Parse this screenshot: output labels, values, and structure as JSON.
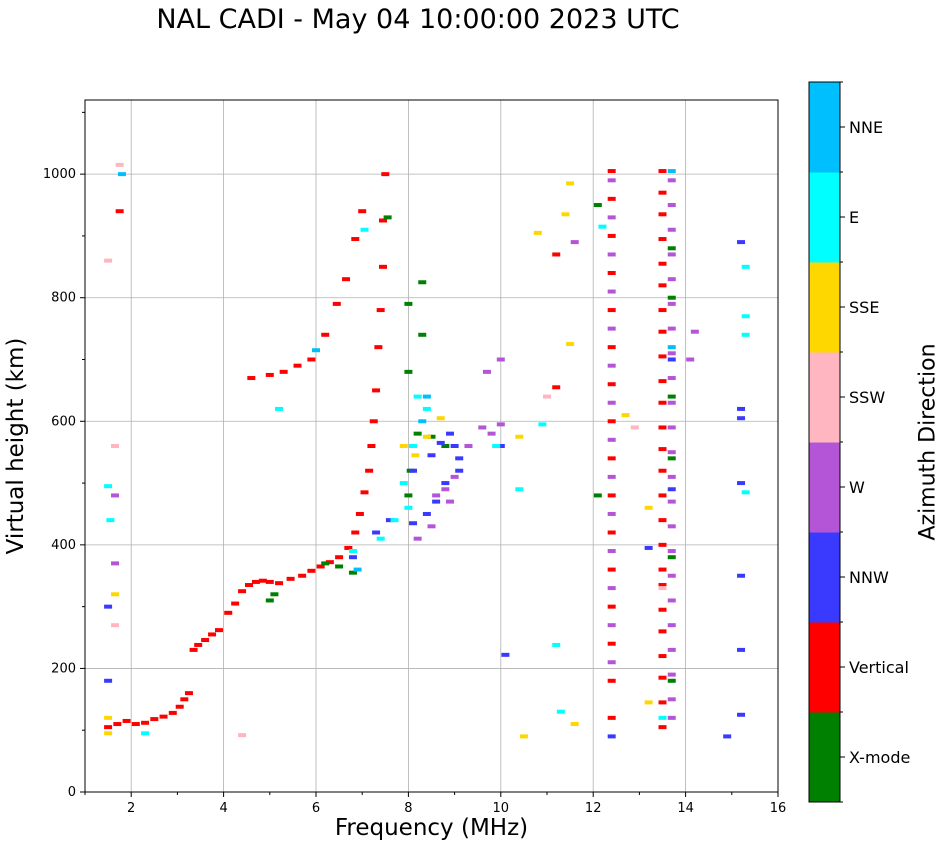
{
  "chart_data": {
    "type": "scatter",
    "title": "NAL CADI - May 04 10:00:00 2023 UTC",
    "xlabel": "Frequency (MHz)",
    "ylabel": "Virtual height (km)",
    "xlim": [
      1,
      16
    ],
    "ylim": [
      0,
      1120
    ],
    "xticks": [
      2,
      4,
      6,
      8,
      10,
      12,
      14,
      16
    ],
    "yticks": [
      0,
      200,
      400,
      600,
      800,
      1000
    ],
    "grid": true,
    "colorbar": {
      "label": "Azimuth Direction",
      "categories": [
        {
          "name": "X-mode",
          "color": "#008000"
        },
        {
          "name": "Vertical",
          "color": "#ff0000"
        },
        {
          "name": "NNW",
          "color": "#3a3aff"
        },
        {
          "name": "W",
          "color": "#b455d8"
        },
        {
          "name": "SSW",
          "color": "#ffb6c1"
        },
        {
          "name": "SSE",
          "color": "#ffd700"
        },
        {
          "name": "E",
          "color": "#00ffff"
        },
        {
          "name": "NNE",
          "color": "#00bfff"
        }
      ]
    },
    "series": [
      {
        "name": "Vertical",
        "points": [
          [
            1.5,
            105
          ],
          [
            1.7,
            110
          ],
          [
            1.9,
            115
          ],
          [
            2.1,
            110
          ],
          [
            2.3,
            112
          ],
          [
            2.5,
            118
          ],
          [
            2.7,
            122
          ],
          [
            2.9,
            128
          ],
          [
            3.05,
            138
          ],
          [
            3.15,
            150
          ],
          [
            3.25,
            160
          ],
          [
            3.35,
            230
          ],
          [
            3.45,
            238
          ],
          [
            3.6,
            246
          ],
          [
            3.75,
            255
          ],
          [
            3.9,
            262
          ],
          [
            4.1,
            290
          ],
          [
            4.25,
            305
          ],
          [
            4.4,
            325
          ],
          [
            4.55,
            335
          ],
          [
            4.7,
            340
          ],
          [
            4.85,
            342
          ],
          [
            5.0,
            340
          ],
          [
            5.2,
            338
          ],
          [
            5.45,
            345
          ],
          [
            5.7,
            350
          ],
          [
            5.9,
            358
          ],
          [
            6.1,
            365
          ],
          [
            6.3,
            372
          ],
          [
            6.5,
            380
          ],
          [
            6.7,
            395
          ],
          [
            6.85,
            420
          ],
          [
            6.95,
            450
          ],
          [
            7.05,
            485
          ],
          [
            7.15,
            520
          ],
          [
            7.2,
            560
          ],
          [
            7.25,
            600
          ],
          [
            7.3,
            650
          ],
          [
            7.35,
            720
          ],
          [
            7.4,
            780
          ],
          [
            7.45,
            850
          ],
          [
            7.45,
            925
          ],
          [
            7.5,
            1000
          ],
          [
            7.0,
            940
          ],
          [
            6.85,
            895
          ],
          [
            6.65,
            830
          ],
          [
            6.45,
            790
          ],
          [
            6.2,
            740
          ],
          [
            5.9,
            700
          ],
          [
            5.6,
            690
          ],
          [
            5.3,
            680
          ],
          [
            5.0,
            675
          ],
          [
            4.6,
            670
          ],
          [
            1.75,
            940
          ],
          [
            11.2,
            870
          ],
          [
            11.2,
            655
          ],
          [
            12.4,
            1005
          ],
          [
            12.4,
            960
          ],
          [
            12.4,
            900
          ],
          [
            12.4,
            840
          ],
          [
            12.4,
            780
          ],
          [
            12.4,
            720
          ],
          [
            12.4,
            660
          ],
          [
            12.4,
            600
          ],
          [
            12.4,
            540
          ],
          [
            12.4,
            480
          ],
          [
            12.4,
            420
          ],
          [
            12.4,
            360
          ],
          [
            12.4,
            300
          ],
          [
            12.4,
            240
          ],
          [
            12.4,
            180
          ],
          [
            12.4,
            120
          ],
          [
            13.5,
            1005
          ],
          [
            13.5,
            970
          ],
          [
            13.5,
            935
          ],
          [
            13.5,
            895
          ],
          [
            13.5,
            855
          ],
          [
            13.5,
            820
          ],
          [
            13.5,
            780
          ],
          [
            13.5,
            745
          ],
          [
            13.5,
            705
          ],
          [
            13.5,
            665
          ],
          [
            13.5,
            630
          ],
          [
            13.5,
            590
          ],
          [
            13.5,
            555
          ],
          [
            13.5,
            520
          ],
          [
            13.5,
            480
          ],
          [
            13.5,
            440
          ],
          [
            13.5,
            400
          ],
          [
            13.5,
            360
          ],
          [
            13.5,
            335
          ],
          [
            13.5,
            295
          ],
          [
            13.5,
            260
          ],
          [
            13.5,
            220
          ],
          [
            13.5,
            185
          ],
          [
            13.5,
            145
          ],
          [
            13.5,
            105
          ]
        ]
      },
      {
        "name": "X-mode",
        "points": [
          [
            5.0,
            310
          ],
          [
            5.1,
            320
          ],
          [
            6.2,
            370
          ],
          [
            6.5,
            365
          ],
          [
            6.8,
            355
          ],
          [
            7.55,
            930
          ],
          [
            8.0,
            790
          ],
          [
            8.3,
            825
          ],
          [
            8.3,
            740
          ],
          [
            8.0,
            680
          ],
          [
            8.2,
            580
          ],
          [
            8.05,
            520
          ],
          [
            8.0,
            480
          ],
          [
            8.5,
            575
          ],
          [
            8.8,
            560
          ],
          [
            12.1,
            950
          ],
          [
            12.1,
            480
          ],
          [
            13.7,
            880
          ],
          [
            13.7,
            800
          ],
          [
            13.7,
            640
          ],
          [
            13.7,
            540
          ],
          [
            13.7,
            380
          ],
          [
            13.7,
            180
          ]
        ]
      },
      {
        "name": "NNW",
        "points": [
          [
            1.5,
            300
          ],
          [
            1.5,
            180
          ],
          [
            6.8,
            380
          ],
          [
            7.3,
            420
          ],
          [
            7.6,
            440
          ],
          [
            8.1,
            520
          ],
          [
            8.5,
            545
          ],
          [
            8.7,
            565
          ],
          [
            8.9,
            580
          ],
          [
            9.0,
            560
          ],
          [
            9.1,
            540
          ],
          [
            9.1,
            520
          ],
          [
            8.8,
            500
          ],
          [
            8.6,
            470
          ],
          [
            8.4,
            450
          ],
          [
            8.1,
            435
          ],
          [
            10.0,
            560
          ],
          [
            10.1,
            222
          ],
          [
            12.4,
            90
          ],
          [
            13.2,
            395
          ],
          [
            15.2,
            890
          ],
          [
            15.2,
            620
          ],
          [
            15.2,
            605
          ],
          [
            15.2,
            500
          ],
          [
            15.2,
            350
          ],
          [
            15.2,
            230
          ],
          [
            15.2,
            125
          ],
          [
            14.9,
            90
          ],
          [
            13.7,
            700
          ],
          [
            13.7,
            490
          ]
        ]
      },
      {
        "name": "W",
        "points": [
          [
            8.6,
            480
          ],
          [
            8.8,
            490
          ],
          [
            9.0,
            510
          ],
          [
            9.3,
            560
          ],
          [
            9.6,
            590
          ],
          [
            9.8,
            580
          ],
          [
            10.0,
            595
          ],
          [
            10.0,
            700
          ],
          [
            9.7,
            680
          ],
          [
            8.9,
            470
          ],
          [
            8.5,
            430
          ],
          [
            8.2,
            410
          ],
          [
            12.4,
            990
          ],
          [
            12.4,
            930
          ],
          [
            12.4,
            870
          ],
          [
            12.4,
            810
          ],
          [
            12.4,
            750
          ],
          [
            12.4,
            690
          ],
          [
            12.4,
            630
          ],
          [
            12.4,
            570
          ],
          [
            12.4,
            510
          ],
          [
            12.4,
            450
          ],
          [
            12.4,
            390
          ],
          [
            12.4,
            330
          ],
          [
            12.4,
            270
          ],
          [
            12.4,
            210
          ],
          [
            13.7,
            990
          ],
          [
            13.7,
            950
          ],
          [
            13.7,
            910
          ],
          [
            13.7,
            870
          ],
          [
            13.7,
            830
          ],
          [
            13.7,
            790
          ],
          [
            13.7,
            750
          ],
          [
            13.7,
            710
          ],
          [
            13.7,
            670
          ],
          [
            13.7,
            630
          ],
          [
            13.7,
            590
          ],
          [
            13.7,
            550
          ],
          [
            13.7,
            510
          ],
          [
            13.7,
            470
          ],
          [
            13.7,
            430
          ],
          [
            13.7,
            390
          ],
          [
            13.7,
            350
          ],
          [
            13.7,
            310
          ],
          [
            13.7,
            270
          ],
          [
            13.7,
            230
          ],
          [
            13.7,
            190
          ],
          [
            13.7,
            150
          ],
          [
            13.7,
            120
          ],
          [
            14.2,
            745
          ],
          [
            14.1,
            700
          ],
          [
            11.6,
            890
          ],
          [
            1.65,
            370
          ],
          [
            1.65,
            480
          ]
        ]
      },
      {
        "name": "SSW",
        "points": [
          [
            1.75,
            1015
          ],
          [
            1.5,
            860
          ],
          [
            1.65,
            560
          ],
          [
            1.65,
            270
          ],
          [
            4.4,
            92
          ],
          [
            11.0,
            640
          ],
          [
            12.9,
            590
          ],
          [
            13.5,
            330
          ]
        ]
      },
      {
        "name": "SSE",
        "points": [
          [
            1.5,
            120
          ],
          [
            1.5,
            95
          ],
          [
            1.65,
            320
          ],
          [
            7.9,
            560
          ],
          [
            8.15,
            545
          ],
          [
            8.4,
            575
          ],
          [
            8.7,
            605
          ],
          [
            10.4,
            575
          ],
          [
            10.5,
            90
          ],
          [
            10.8,
            905
          ],
          [
            11.4,
            935
          ],
          [
            11.5,
            725
          ],
          [
            11.6,
            110
          ],
          [
            12.7,
            610
          ],
          [
            13.2,
            460
          ],
          [
            13.2,
            145
          ],
          [
            11.5,
            985
          ]
        ]
      },
      {
        "name": "E",
        "points": [
          [
            1.5,
            495
          ],
          [
            1.55,
            440
          ],
          [
            2.3,
            95
          ],
          [
            5.2,
            620
          ],
          [
            6.8,
            390
          ],
          [
            7.05,
            910
          ],
          [
            7.4,
            410
          ],
          [
            7.7,
            440
          ],
          [
            7.9,
            500
          ],
          [
            8.1,
            560
          ],
          [
            8.2,
            640
          ],
          [
            8.4,
            620
          ],
          [
            9.9,
            560
          ],
          [
            10.4,
            490
          ],
          [
            10.9,
            595
          ],
          [
            11.2,
            238
          ],
          [
            11.3,
            130
          ],
          [
            15.3,
            850
          ],
          [
            15.3,
            770
          ],
          [
            15.3,
            740
          ],
          [
            15.3,
            485
          ],
          [
            12.2,
            915
          ],
          [
            13.5,
            120
          ],
          [
            8.0,
            460
          ]
        ]
      },
      {
        "name": "NNE",
        "points": [
          [
            1.8,
            1000
          ],
          [
            6.0,
            715
          ],
          [
            8.4,
            640
          ],
          [
            8.3,
            600
          ],
          [
            6.9,
            360
          ],
          [
            13.7,
            1005
          ],
          [
            13.7,
            720
          ]
        ]
      }
    ]
  }
}
